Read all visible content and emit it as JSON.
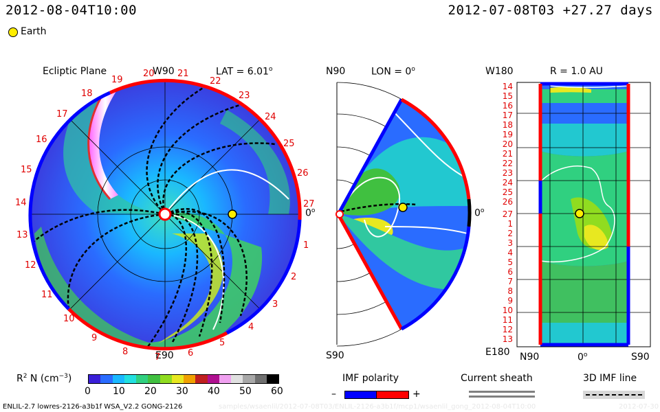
{
  "header": {
    "left_time": "2012-08-04T10:00",
    "right_time": "2012-07-08T03 +27.27 days"
  },
  "legend_earth": "Earth",
  "panel_ecliptic": {
    "title": "Ecliptic Plane",
    "top_label": "W90",
    "lat_label": "LAT = 6.01",
    "lat_unit": "o",
    "bottom_label": "E90",
    "right_label": "0",
    "right_unit": "o",
    "carrington": [
      "19",
      "20",
      "21",
      "22",
      "23",
      "24",
      "25",
      "26",
      "27",
      "1",
      "2",
      "3",
      "4",
      "5",
      "6",
      "7",
      "8",
      "9",
      "10",
      "11",
      "12",
      "13",
      "14",
      "15",
      "16",
      "17",
      "18"
    ]
  },
  "panel_meridional": {
    "top_label": "N90",
    "lon_label": "LON = 0",
    "lon_unit": "o",
    "bottom_label": "S90",
    "right_label": "0",
    "right_unit": "o"
  },
  "panel_radial": {
    "r_label": "R = 1.0 AU",
    "top_left": "W180",
    "bottom_left": "E180",
    "bottom_n": "N90",
    "bottom_mid": "0",
    "bottom_mid_unit": "o",
    "bottom_s": "S90",
    "y_labels": [
      "14",
      "15",
      "16",
      "17",
      "18",
      "19",
      "20",
      "21",
      "22",
      "23",
      "24",
      "25",
      "26",
      "27",
      "1",
      "2",
      "3",
      "4",
      "5",
      "6",
      "7",
      "8",
      "9",
      "10",
      "11",
      "12",
      "13"
    ]
  },
  "colorbar": {
    "label_main": "R",
    "label_sup": "2",
    "label_rest": " N (cm",
    "label_exp": "−3",
    "label_close": ")",
    "ticks": [
      "0",
      "10",
      "20",
      "30",
      "40",
      "50",
      "60"
    ],
    "colors": [
      "#3a1fd8",
      "#2a6cff",
      "#1ab8ff",
      "#22e0e0",
      "#30d080",
      "#40c040",
      "#90dc20",
      "#e8e820",
      "#f0a000",
      "#c02020",
      "#b01090",
      "#f0a0f0",
      "#e0e0e0",
      "#a8a8a8",
      "#707070",
      "#000000"
    ]
  },
  "imf_legend": {
    "title": "IMF polarity",
    "minus": "–",
    "plus": "+",
    "neg_color": "#0000ff",
    "pos_color": "#ff0000"
  },
  "current_sheath_label": "Current sheath",
  "imf_line_label": "3D IMF line",
  "footer": {
    "model": "ENLIL-2.7 lowres-2126-a3b1f WSA_V2.2 GONG-2126",
    "path": "samples/wsaenlil/2012-07-08T03/ENLIL-2126-a3b1f/mcp1/wsaenlil_gong_2012-08-04T10:00",
    "date": "2012-07-30"
  }
}
